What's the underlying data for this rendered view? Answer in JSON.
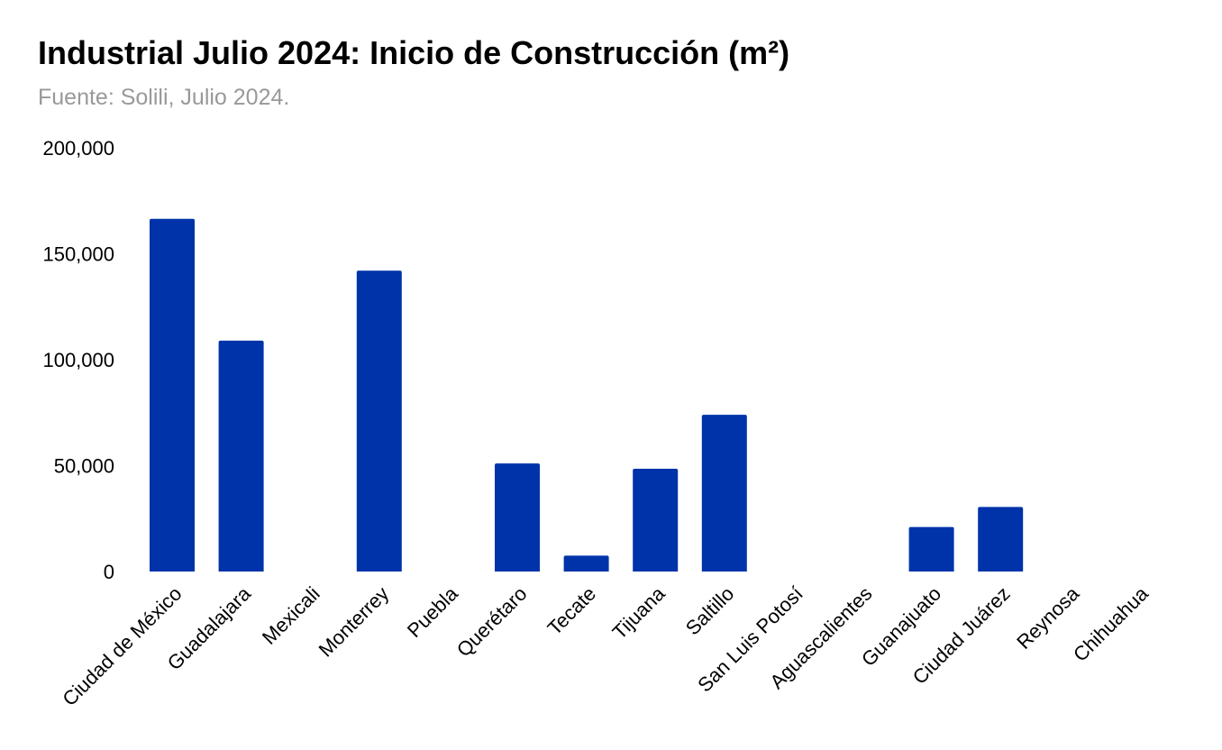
{
  "chart_data": {
    "type": "bar",
    "title": "Industrial Julio 2024: Inicio de Construcción (m²)",
    "subtitle": "Fuente: Solili, Julio 2024.",
    "xlabel": "",
    "ylabel": "",
    "ylim": [
      0,
      200000
    ],
    "yticks": [
      0,
      50000,
      100000,
      150000,
      200000
    ],
    "ytick_labels": [
      "0",
      "50,000",
      "100,000",
      "150,000",
      "200,000"
    ],
    "grid": false,
    "legend": "none",
    "bar_color": "#0033AA",
    "categories": [
      "Ciudad de México",
      "Guadalajara",
      "Mexicali",
      "Monterrey",
      "Puebla",
      "Querétaro",
      "Tecate",
      "Tijuana",
      "Saltillo",
      "San Luis Potosí",
      "Aguascalientes",
      "Guanajuato",
      "Ciudad Juárez",
      "Reynosa",
      "Chihuahua"
    ],
    "values": [
      166500,
      109000,
      0,
      142000,
      0,
      51000,
      7500,
      48500,
      74000,
      0,
      0,
      21000,
      30500,
      0,
      0
    ]
  }
}
